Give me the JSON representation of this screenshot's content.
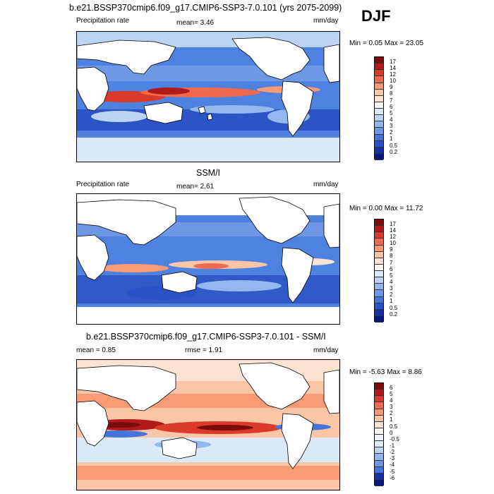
{
  "season": "DJF",
  "panels": [
    {
      "title": "b.e21.BSSP370cmip6.f09_g17.CMIP6-SSP3-7.0.101 (yrs 2075-2099)",
      "left_label": "Precipitation rate",
      "center_label": "mean=  3.46",
      "units": "mm/day",
      "minmax": "Min =   0.05 Max =  23.05",
      "colorbar_labels": [
        "17",
        "14",
        "12",
        "10",
        "9",
        "8",
        "7",
        "6",
        "5",
        "4",
        "3",
        "2",
        "1",
        "0.5",
        "0.2"
      ],
      "colorbar_colors": [
        "#7a0c0c",
        "#b01a1a",
        "#d93a2a",
        "#ef6a4c",
        "#f79a76",
        "#fbc5a8",
        "#fde4d2",
        "#fef7ef",
        "#dbe9f8",
        "#bcd4f3",
        "#94b8ee",
        "#6e98e5",
        "#4575da",
        "#2a52c9",
        "#1330b0",
        "#061a80"
      ]
    },
    {
      "title": "SSM/I",
      "left_label": "Precipitation rate",
      "center_label": "mean=  2.61",
      "units": "mm/day",
      "minmax": "Min =   0.00 Max =  11.72",
      "colorbar_labels": [
        "17",
        "14",
        "12",
        "10",
        "9",
        "8",
        "7",
        "6",
        "5",
        "4",
        "3",
        "2",
        "1",
        "0.5",
        "0.2"
      ],
      "colorbar_colors": [
        "#7a0c0c",
        "#b01a1a",
        "#d93a2a",
        "#ef6a4c",
        "#f79a76",
        "#fbc5a8",
        "#fde4d2",
        "#fef7ef",
        "#dbe9f8",
        "#bcd4f3",
        "#94b8ee",
        "#6e98e5",
        "#4575da",
        "#2a52c9",
        "#1330b0",
        "#061a80"
      ]
    },
    {
      "title": "b.e21.BSSP370cmip6.f09_g17.CMIP6-SSP3-7.0.101 - SSM/I",
      "left_label": "mean =   0.85",
      "center_label": "rmse =   1.91",
      "units": "mm/day",
      "minmax": "Min =  -5.63 Max =   8.86",
      "colorbar_labels": [
        "6",
        "5",
        "4",
        "3",
        "2",
        "1",
        "0.5",
        "0",
        "-0.5",
        "-1",
        "-2",
        "-3",
        "-4",
        "-5",
        "-6"
      ],
      "colorbar_colors": [
        "#7a0c0c",
        "#b01a1a",
        "#d93a2a",
        "#ef6a4c",
        "#f79a76",
        "#fbc5a8",
        "#fde4d2",
        "#fef7ef",
        "#eef3fb",
        "#dbe9f8",
        "#bcd4f3",
        "#94b8ee",
        "#6e98e5",
        "#4575da",
        "#1330b0",
        "#061a80"
      ]
    }
  ]
}
